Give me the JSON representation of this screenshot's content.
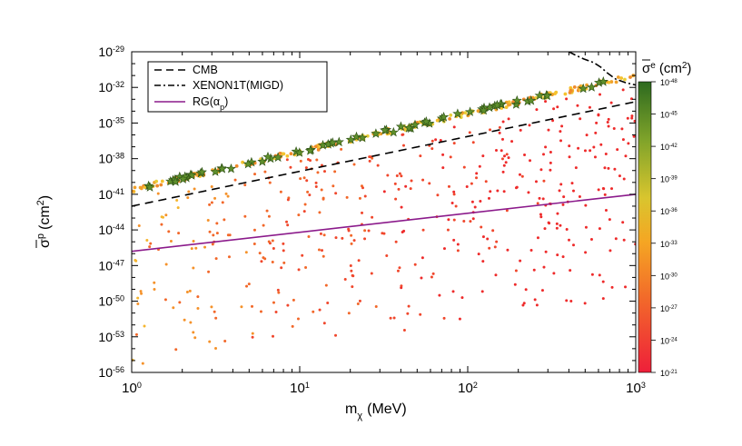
{
  "chart_data": {
    "type": "scatter",
    "x_scale": "log",
    "y_scale": "log",
    "xlim": [
      1,
      1000
    ],
    "ylim": [
      1e-56,
      1e-29
    ],
    "xlabel": "m",
    "xlabel_sub": "χ",
    "xlabel_unit": "(MeV)",
    "ylabel": "σ",
    "ylabel_sup": "p",
    "ylabel_unit": "(cm",
    "ylabel_unit_sup": "2",
    "ylabel_unit_close": ")",
    "x_tick_labels": [
      {
        "base": "10",
        "exp": "0"
      },
      {
        "base": "10",
        "exp": "1"
      },
      {
        "base": "10",
        "exp": "2"
      },
      {
        "base": "10",
        "exp": "3"
      }
    ],
    "y_tick_labels": [
      {
        "base": "10",
        "exp": "-29"
      },
      {
        "base": "10",
        "exp": "-32"
      },
      {
        "base": "10",
        "exp": "-35"
      },
      {
        "base": "10",
        "exp": "-38"
      },
      {
        "base": "10",
        "exp": "-41"
      },
      {
        "base": "10",
        "exp": "-44"
      },
      {
        "base": "10",
        "exp": "-47"
      },
      {
        "base": "10",
        "exp": "-50"
      },
      {
        "base": "10",
        "exp": "-53"
      },
      {
        "base": "10",
        "exp": "-56"
      }
    ],
    "colorbar": {
      "title": "σ",
      "title_sup": "e",
      "title_unit": "(cm",
      "title_unit_sup": "2",
      "title_unit_close": ")",
      "range_log10": [
        -48,
        -21
      ],
      "tick_labels": [
        {
          "base": "10",
          "exp": "-48"
        },
        {
          "base": "10",
          "exp": "-45"
        },
        {
          "base": "10",
          "exp": "-42"
        },
        {
          "base": "10",
          "exp": "-39"
        },
        {
          "base": "10",
          "exp": "-36"
        },
        {
          "base": "10",
          "exp": "-33"
        },
        {
          "base": "10",
          "exp": "-30"
        },
        {
          "base": "10",
          "exp": "-27"
        },
        {
          "base": "10",
          "exp": "-24"
        },
        {
          "base": "10",
          "exp": "-21"
        }
      ],
      "colors_top_to_bottom": [
        "#2d6a1f",
        "#7fa32a",
        "#d9c52e",
        "#f5a623",
        "#f2682a",
        "#ee1f3a"
      ]
    },
    "legend": {
      "placement": "top-left",
      "entries": [
        {
          "label": "CMB",
          "style": "dashed",
          "color": "#000000"
        },
        {
          "label": "XENON1T(MIGD)",
          "style": "dashdot",
          "color": "#000000"
        },
        {
          "label": "RG(α",
          "label_sub": "p",
          "label_close": ")",
          "style": "solid",
          "color": "#8b1a8b"
        }
      ]
    },
    "lines": {
      "cmb": {
        "x": [
          1,
          1000
        ],
        "y_log10": [
          -42.0,
          -33.2
        ]
      },
      "rg": {
        "x": [
          1,
          1000
        ],
        "y_log10": [
          -45.8,
          -41.0
        ]
      },
      "xenon": {
        "x": [
          400,
          440,
          490,
          560,
          620,
          680,
          760,
          870,
          1000
        ],
        "y_log10": [
          -29.0,
          -29.3,
          -29.6,
          -29.9,
          -30.3,
          -30.8,
          -31.3,
          -31.6,
          -31.8
        ]
      }
    },
    "stars_color": "#5e8f2c",
    "stars_edge": "#2c4f14"
  }
}
